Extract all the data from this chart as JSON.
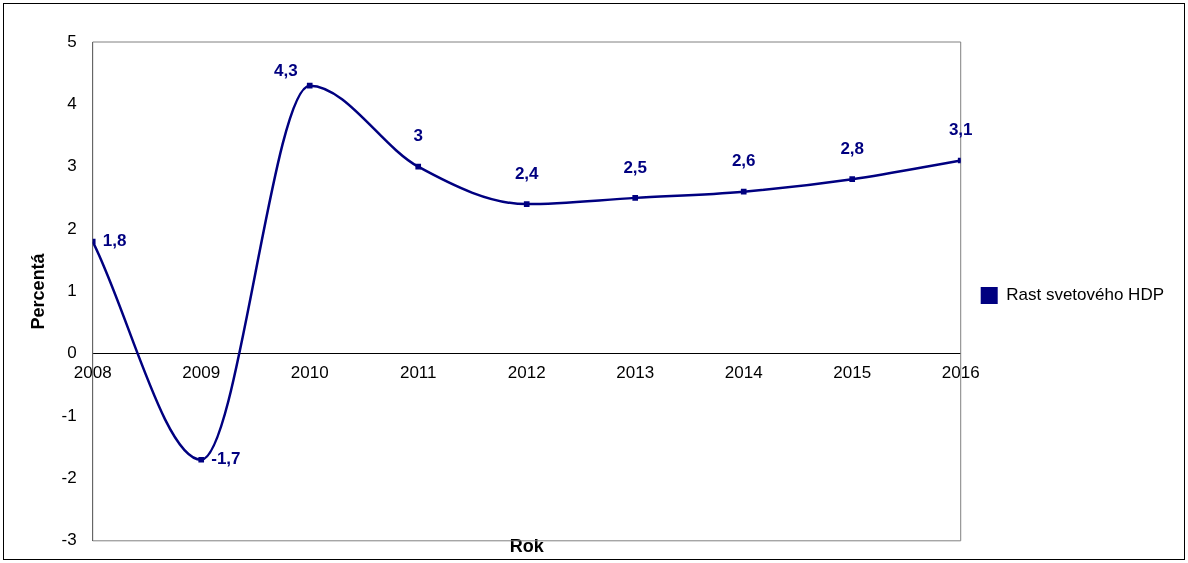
{
  "chart_data": {
    "type": "line",
    "xlabel": "Rok",
    "ylabel": "Percentá",
    "x": [
      2008,
      2009,
      2010,
      2011,
      2012,
      2013,
      2014,
      2015,
      2016
    ],
    "xlim": [
      2008,
      2016
    ],
    "xticks": [
      2008,
      2009,
      2010,
      2011,
      2012,
      2013,
      2014,
      2015,
      2016
    ],
    "ylim": [
      -3,
      5
    ],
    "yticks": [
      -3,
      -2,
      -1,
      0,
      1,
      2,
      3,
      4,
      5
    ],
    "series": [
      {
        "name": "Rast svetového HDP",
        "color": "#000080",
        "values": [
          1.8,
          -1.7,
          4.3,
          3,
          2.4,
          2.5,
          2.6,
          2.8,
          3.1
        ],
        "value_labels": [
          "1,8",
          "-1,7",
          "4,3",
          "3",
          "2,4",
          "2,5",
          "2,6",
          "2,8",
          "3,1"
        ]
      }
    ],
    "marker": "square",
    "line_style": "solid",
    "grid": false,
    "legend": "right"
  }
}
